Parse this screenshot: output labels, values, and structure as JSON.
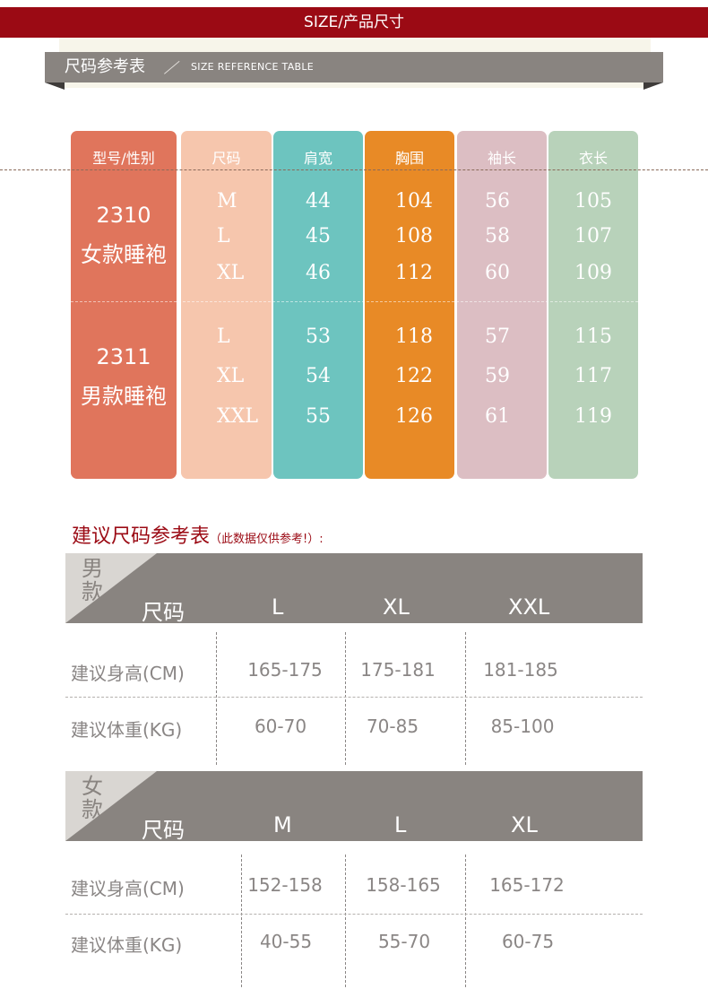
{
  "header": {
    "title": "SIZE/产品尺寸"
  },
  "ribbon": {
    "title_cn": "尺码参考表",
    "title_en": "SIZE REFERENCE TABLE"
  },
  "size_table": {
    "headers": [
      "型号/性别",
      "尺码",
      "肩宽",
      "胸围",
      "袖长",
      "衣长"
    ],
    "groups": [
      {
        "model": "2310",
        "name": "女款睡袍",
        "rows": [
          {
            "size": "M",
            "shoulder": "44",
            "chest": "104",
            "sleeve": "56",
            "length": "105"
          },
          {
            "size": "L",
            "shoulder": "45",
            "chest": "108",
            "sleeve": "58",
            "length": "107"
          },
          {
            "size": "XL",
            "shoulder": "46",
            "chest": "112",
            "sleeve": "60",
            "length": "109"
          }
        ]
      },
      {
        "model": "2311",
        "name": "男款睡袍",
        "rows": [
          {
            "size": "L",
            "shoulder": "53",
            "chest": "118",
            "sleeve": "57",
            "length": "115"
          },
          {
            "size": "XL",
            "shoulder": "54",
            "chest": "122",
            "sleeve": "59",
            "length": "117"
          },
          {
            "size": "XXL",
            "shoulder": "55",
            "chest": "126",
            "sleeve": "61",
            "length": "119"
          }
        ]
      }
    ]
  },
  "suggest": {
    "title": "建议尺码参考表",
    "note": "（此数据仅供参考!）:",
    "male": {
      "gender": "男款",
      "size_label": "尺码",
      "sizes": [
        "L",
        "XL",
        "XXL"
      ],
      "height_label": "建议身高(CM)",
      "heights": [
        "165-175",
        "175-181",
        "181-185"
      ],
      "weight_label": "建议体重(KG)",
      "weights": [
        "60-70",
        "70-85",
        "85-100"
      ]
    },
    "female": {
      "gender": "女款",
      "size_label": "尺码",
      "sizes": [
        "M",
        "L",
        "XL"
      ],
      "height_label": "建议身高(CM)",
      "heights": [
        "152-158",
        "158-165",
        "165-172"
      ],
      "weight_label": "建议体重(KG)",
      "weights": [
        "40-55",
        "55-70",
        "60-75"
      ]
    }
  },
  "colors": {
    "brand": "#9b0a14",
    "gray": "#898480",
    "col_model": "#e0755c",
    "col_size": "#f6c6ad",
    "col_shoulder": "#6dc4bf",
    "col_chest": "#e88a26",
    "col_sleeve": "#dcbec3",
    "col_length": "#b8d2ba"
  }
}
